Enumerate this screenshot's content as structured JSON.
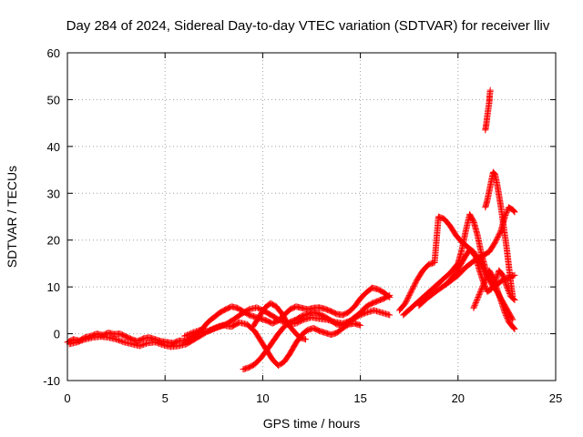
{
  "chart_data": {
    "type": "scatter",
    "title": "Day 284 of 2024, Sidereal Day-to-day VTEC variation (SDTVAR) for receiver lliv",
    "xlabel": "GPS time / hours",
    "ylabel": "SDTVAR / TECUs",
    "xlim": [
      0,
      25
    ],
    "ylim": [
      -10,
      60
    ],
    "xticks": [
      0,
      5,
      10,
      15,
      20,
      25
    ],
    "yticks": [
      -10,
      0,
      10,
      20,
      30,
      40,
      50,
      60
    ],
    "grid": true,
    "marker": "plus",
    "color": "#ff0000",
    "series": [
      {
        "values_xy": [
          [
            0.0,
            -1.8
          ],
          [
            0.3,
            -1.2
          ],
          [
            0.6,
            -1.5
          ],
          [
            0.9,
            -0.8
          ],
          [
            1.2,
            -0.5
          ],
          [
            1.5,
            0.0
          ],
          [
            1.8,
            -0.3
          ],
          [
            2.1,
            0.2
          ],
          [
            2.4,
            -0.1
          ],
          [
            2.7,
            0.0
          ],
          [
            3.0,
            -0.6
          ],
          [
            3.3,
            -1.2
          ],
          [
            3.6,
            -1.6
          ],
          [
            3.9,
            -1.0
          ],
          [
            4.2,
            -0.8
          ],
          [
            4.5,
            -1.2
          ],
          [
            4.8,
            -1.6
          ],
          [
            5.1,
            -1.8
          ],
          [
            5.4,
            -2.0
          ],
          [
            5.7,
            -1.5
          ],
          [
            6.0,
            -1.5
          ],
          [
            6.3,
            -1.0
          ],
          [
            6.6,
            0.0
          ],
          [
            6.9,
            1.0
          ],
          [
            7.2,
            2.5
          ],
          [
            7.5,
            3.5
          ],
          [
            7.8,
            4.5
          ],
          [
            8.1,
            5.2
          ],
          [
            8.4,
            5.8
          ],
          [
            8.7,
            5.5
          ],
          [
            9.0,
            4.8
          ],
          [
            9.3,
            4.0
          ],
          [
            9.6,
            3.6
          ],
          [
            9.9,
            3.2
          ],
          [
            10.2,
            2.8
          ],
          [
            10.5,
            2.2
          ],
          [
            10.8,
            2.8
          ],
          [
            11.1,
            4.0
          ],
          [
            11.4,
            5.2
          ],
          [
            11.7,
            5.8
          ],
          [
            12.0,
            5.5
          ],
          [
            12.3,
            5.2
          ],
          [
            12.6,
            5.5
          ],
          [
            12.9,
            5.6
          ],
          [
            13.2,
            5.3
          ],
          [
            13.5,
            4.8
          ],
          [
            13.8,
            4.2
          ],
          [
            14.1,
            4.0
          ],
          [
            14.4,
            4.6
          ],
          [
            14.7,
            5.8
          ],
          [
            15.0,
            7.5
          ],
          [
            15.3,
            8.8
          ],
          [
            15.6,
            9.8
          ],
          [
            15.9,
            9.5
          ],
          [
            16.2,
            8.8
          ],
          [
            16.5,
            7.8
          ]
        ]
      },
      {
        "values_xy": [
          [
            0.1,
            -2.2
          ],
          [
            0.5,
            -1.8
          ],
          [
            0.9,
            -1.2
          ],
          [
            1.3,
            -0.8
          ],
          [
            1.7,
            -0.6
          ],
          [
            2.1,
            -0.8
          ],
          [
            2.5,
            -1.2
          ],
          [
            2.9,
            -1.8
          ],
          [
            3.3,
            -2.2
          ],
          [
            3.7,
            -2.6
          ],
          [
            4.1,
            -2.0
          ],
          [
            4.5,
            -1.8
          ],
          [
            4.9,
            -2.4
          ],
          [
            5.3,
            -2.8
          ],
          [
            5.7,
            -2.6
          ],
          [
            6.1,
            -2.2
          ],
          [
            6.5,
            -1.2
          ],
          [
            6.9,
            -0.2
          ],
          [
            7.3,
            0.8
          ],
          [
            7.7,
            1.5
          ],
          [
            8.1,
            2.0
          ],
          [
            8.5,
            3.0
          ],
          [
            8.9,
            4.2
          ],
          [
            9.3,
            5.2
          ],
          [
            9.7,
            5.6
          ],
          [
            10.1,
            4.8
          ],
          [
            10.5,
            3.8
          ],
          [
            10.9,
            2.8
          ],
          [
            11.3,
            2.0
          ],
          [
            11.7,
            2.2
          ],
          [
            12.1,
            3.0
          ],
          [
            12.5,
            3.5
          ],
          [
            12.9,
            3.2
          ],
          [
            13.3,
            3.0
          ],
          [
            13.7,
            2.5
          ],
          [
            14.1,
            2.2
          ],
          [
            14.5,
            2.8
          ],
          [
            14.9,
            3.8
          ],
          [
            15.3,
            4.5
          ],
          [
            15.7,
            5.0
          ],
          [
            16.1,
            4.5
          ],
          [
            16.5,
            4.0
          ]
        ]
      },
      {
        "values_xy": [
          [
            6.0,
            -0.5
          ],
          [
            6.4,
            0.2
          ],
          [
            6.8,
            0.8
          ],
          [
            7.2,
            0.5
          ],
          [
            7.6,
            1.2
          ],
          [
            8.0,
            1.8
          ],
          [
            8.4,
            1.5
          ],
          [
            8.8,
            2.4
          ],
          [
            9.2,
            2.0
          ],
          [
            9.6,
            0.5
          ],
          [
            9.9,
            -1.5
          ],
          [
            10.2,
            -3.5
          ],
          [
            10.5,
            -5.5
          ],
          [
            10.8,
            -6.8
          ],
          [
            11.1,
            -6.0
          ],
          [
            11.4,
            -4.2
          ],
          [
            11.7,
            -2.0
          ],
          [
            12.0,
            -0.2
          ],
          [
            12.3,
            0.8
          ],
          [
            12.6,
            1.2
          ],
          [
            12.9,
            0.6
          ],
          [
            13.2,
            0.2
          ],
          [
            13.5,
            -0.2
          ],
          [
            13.8,
            0.2
          ],
          [
            14.1,
            1.2
          ],
          [
            14.4,
            2.0
          ],
          [
            14.7,
            2.2
          ],
          [
            15.0,
            1.8
          ]
        ]
      },
      {
        "values_xy": [
          [
            9.0,
            -7.6
          ],
          [
            9.3,
            -7.2
          ],
          [
            9.6,
            -6.5
          ],
          [
            9.9,
            -5.2
          ],
          [
            10.2,
            -3.6
          ],
          [
            10.5,
            -1.8
          ],
          [
            10.8,
            0.0
          ],
          [
            11.1,
            1.5
          ],
          [
            11.4,
            2.5
          ],
          [
            11.7,
            3.0
          ],
          [
            12.0,
            3.8
          ],
          [
            12.3,
            4.2
          ],
          [
            12.6,
            4.6
          ],
          [
            12.9,
            4.2
          ],
          [
            13.2,
            3.6
          ],
          [
            13.5,
            2.8
          ],
          [
            13.8,
            2.0
          ],
          [
            14.1,
            1.8
          ],
          [
            14.4,
            2.5
          ],
          [
            14.7,
            3.5
          ],
          [
            15.0,
            4.5
          ],
          [
            15.3,
            5.8
          ],
          [
            15.6,
            6.5
          ],
          [
            15.9,
            7.0
          ],
          [
            16.2,
            7.5
          ],
          [
            16.5,
            8.2
          ]
        ]
      },
      {
        "values_xy": [
          [
            9.5,
            1.5
          ],
          [
            9.8,
            3.5
          ],
          [
            10.1,
            5.5
          ],
          [
            10.4,
            6.5
          ],
          [
            10.7,
            5.8
          ],
          [
            11.0,
            4.2
          ],
          [
            11.3,
            2.0
          ],
          [
            11.6,
            0.5
          ],
          [
            11.9,
            -0.8
          ],
          [
            12.2,
            -1.2
          ]
        ]
      },
      {
        "values_xy": [
          [
            17.0,
            5.0
          ],
          [
            17.3,
            6.5
          ],
          [
            17.6,
            9.0
          ],
          [
            17.9,
            11.5
          ],
          [
            18.2,
            13.5
          ],
          [
            18.5,
            14.8
          ],
          [
            18.8,
            15.2
          ],
          [
            19.0,
            25.0
          ],
          [
            19.3,
            24.5
          ],
          [
            19.6,
            23.0
          ],
          [
            19.9,
            21.0
          ],
          [
            20.2,
            19.5
          ],
          [
            20.5,
            18.5
          ],
          [
            20.8,
            17.5
          ],
          [
            21.1,
            15.5
          ],
          [
            21.4,
            13.0
          ],
          [
            21.7,
            11.0
          ],
          [
            22.0,
            10.5
          ],
          [
            22.3,
            11.5
          ],
          [
            22.6,
            12.0
          ],
          [
            22.9,
            12.5
          ]
        ]
      },
      {
        "values_xy": [
          [
            17.2,
            4.0
          ],
          [
            17.6,
            5.5
          ],
          [
            18.0,
            7.0
          ],
          [
            18.4,
            8.5
          ],
          [
            18.8,
            10.0
          ],
          [
            19.2,
            11.5
          ],
          [
            19.6,
            13.0
          ],
          [
            20.0,
            15.0
          ],
          [
            20.2,
            18.0
          ],
          [
            20.4,
            22.0
          ],
          [
            20.6,
            25.5
          ],
          [
            20.8,
            24.0
          ],
          [
            21.0,
            21.0
          ],
          [
            21.2,
            17.0
          ],
          [
            21.4,
            14.0
          ],
          [
            21.6,
            11.5
          ],
          [
            21.8,
            10.0
          ],
          [
            22.0,
            9.0
          ],
          [
            22.2,
            7.5
          ],
          [
            22.4,
            6.0
          ],
          [
            22.6,
            4.5
          ],
          [
            22.8,
            3.0
          ]
        ]
      },
      {
        "values_xy": [
          [
            18.0,
            6.0
          ],
          [
            18.4,
            7.5
          ],
          [
            18.8,
            8.8
          ],
          [
            19.2,
            10.0
          ],
          [
            19.6,
            11.2
          ],
          [
            20.0,
            12.5
          ],
          [
            20.4,
            14.2
          ],
          [
            20.8,
            15.5
          ],
          [
            21.2,
            16.5
          ],
          [
            21.6,
            17.5
          ],
          [
            21.9,
            19.5
          ],
          [
            22.2,
            22.0
          ],
          [
            22.4,
            25.0
          ],
          [
            22.6,
            27.0
          ],
          [
            22.8,
            26.5
          ],
          [
            22.9,
            26.0
          ]
        ]
      },
      {
        "values_xy": [
          [
            19.5,
            11.0
          ],
          [
            19.9,
            13.0
          ],
          [
            20.3,
            16.0
          ],
          [
            20.6,
            18.0
          ],
          [
            20.9,
            16.5
          ],
          [
            21.1,
            13.5
          ],
          [
            21.3,
            11.0
          ],
          [
            21.5,
            9.0
          ],
          [
            21.7,
            9.5
          ],
          [
            21.9,
            11.0
          ],
          [
            22.1,
            13.5
          ],
          [
            22.3,
            12.5
          ],
          [
            22.5,
            10.0
          ],
          [
            22.7,
            8.0
          ],
          [
            22.9,
            7.2
          ]
        ]
      },
      {
        "values_xy": [
          [
            20.8,
            5.5
          ],
          [
            21.0,
            7.5
          ],
          [
            21.2,
            9.5
          ],
          [
            21.4,
            11.5
          ],
          [
            21.6,
            13.5
          ],
          [
            21.8,
            12.0
          ],
          [
            22.0,
            9.5
          ],
          [
            22.2,
            7.0
          ],
          [
            22.4,
            4.5
          ],
          [
            22.6,
            2.5
          ],
          [
            22.8,
            1.5
          ],
          [
            22.9,
            1.0
          ]
        ]
      },
      {
        "values_xy": [
          [
            21.4,
            43.5
          ],
          [
            21.45,
            44.8
          ],
          [
            21.5,
            46.5
          ],
          [
            21.55,
            48.0
          ],
          [
            21.6,
            49.5
          ],
          [
            21.62,
            50.8
          ],
          [
            21.65,
            52.0
          ]
        ]
      },
      {
        "values_xy": [
          [
            21.4,
            27.0
          ],
          [
            21.5,
            28.5
          ],
          [
            21.6,
            30.5
          ],
          [
            21.7,
            32.5
          ],
          [
            21.8,
            34.5
          ],
          [
            21.9,
            34.0
          ],
          [
            22.0,
            32.0
          ],
          [
            22.1,
            29.5
          ],
          [
            22.2,
            27.0
          ],
          [
            22.3,
            24.0
          ],
          [
            22.4,
            21.0
          ],
          [
            22.5,
            18.0
          ],
          [
            22.6,
            14.5
          ],
          [
            22.7,
            11.0
          ],
          [
            22.8,
            8.0
          ]
        ]
      }
    ]
  }
}
